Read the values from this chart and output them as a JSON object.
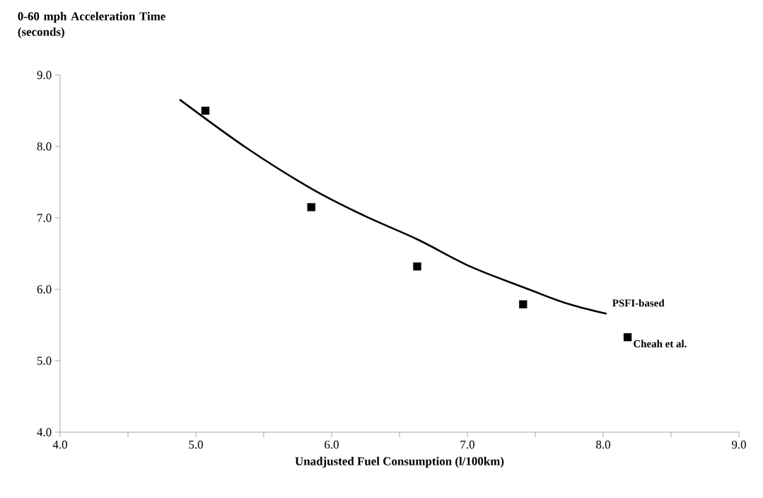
{
  "chart_data": {
    "type": "scatter",
    "xlabel": "Unadjusted Fuel Consumption (l/100km)",
    "ylabel": "0-60 mph Acceleration Time (seconds)",
    "xlim": [
      4.0,
      9.0
    ],
    "ylim": [
      4.0,
      9.0
    ],
    "xticks": [
      {
        "value": 4.0,
        "label": "4.0"
      },
      {
        "value": 4.5,
        "label": null
      },
      {
        "value": 5.0,
        "label": "5.0"
      },
      {
        "value": 5.5,
        "label": null
      },
      {
        "value": 6.0,
        "label": "6.0"
      },
      {
        "value": 6.5,
        "label": null
      },
      {
        "value": 7.0,
        "label": "7.0"
      },
      {
        "value": 7.5,
        "label": null
      },
      {
        "value": 8.0,
        "label": "8.0"
      },
      {
        "value": 8.5,
        "label": null
      },
      {
        "value": 9.0,
        "label": "9.0"
      }
    ],
    "yticks": [
      {
        "value": 4.0,
        "label": "4.0"
      },
      {
        "value": 5.0,
        "label": "5.0"
      },
      {
        "value": 6.0,
        "label": "6.0"
      },
      {
        "value": 7.0,
        "label": "7.0"
      },
      {
        "value": 8.0,
        "label": "8.0"
      },
      {
        "value": 9.0,
        "label": "9.0"
      }
    ],
    "grid": false,
    "legend": false,
    "series": [
      {
        "name": "PSFI-based",
        "type": "line",
        "color": "#000000",
        "marker": "none",
        "line_style": "solid",
        "x": [
          4.885,
          5.38,
          5.85,
          6.24,
          6.63,
          7.02,
          7.41,
          7.72,
          8.02
        ],
        "values": [
          8.65,
          7.97,
          7.41,
          7.03,
          6.7,
          6.32,
          6.03,
          5.81,
          5.66
        ]
      },
      {
        "name": "Cheah et al.",
        "color": "#000000",
        "marker": "square",
        "x": [
          5.07,
          5.85,
          6.63,
          7.41,
          8.18
        ],
        "values": [
          8.5,
          7.15,
          6.32,
          5.79,
          5.33
        ]
      }
    ]
  }
}
